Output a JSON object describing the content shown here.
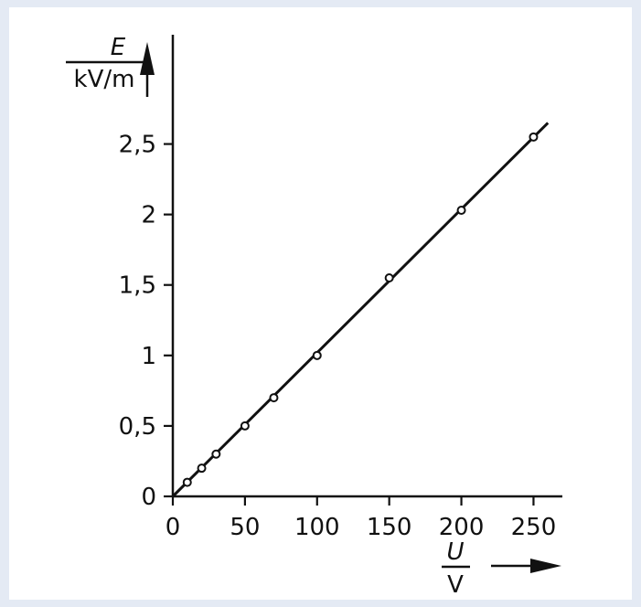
{
  "colors": {
    "background": "#e4eaf4",
    "panel": "#ffffff",
    "ink": "#111111"
  },
  "chart_data": {
    "type": "line",
    "title": "",
    "y_label": {
      "symbol": "E",
      "unit": "kV/m"
    },
    "x_label": {
      "symbol": "U",
      "unit": "V"
    },
    "xlim": [
      0,
      270
    ],
    "ylim": [
      0,
      2.75
    ],
    "grid": false,
    "x_ticks": [
      {
        "value": 0,
        "label": "0"
      },
      {
        "value": 50,
        "label": "50"
      },
      {
        "value": 100,
        "label": "100"
      },
      {
        "value": 150,
        "label": "150"
      },
      {
        "value": 200,
        "label": "200"
      },
      {
        "value": 250,
        "label": "250"
      }
    ],
    "y_ticks": [
      {
        "value": 0,
        "label": "0"
      },
      {
        "value": 0.5,
        "label": "0,5"
      },
      {
        "value": 1,
        "label": "1"
      },
      {
        "value": 1.5,
        "label": "1,5"
      },
      {
        "value": 2,
        "label": "2"
      },
      {
        "value": 2.5,
        "label": "2,5"
      }
    ],
    "series": [
      {
        "markers": "open-circle",
        "points": [
          {
            "x": 10,
            "y": 0.1
          },
          {
            "x": 20,
            "y": 0.2
          },
          {
            "x": 30,
            "y": 0.3
          },
          {
            "x": 50,
            "y": 0.5
          },
          {
            "x": 70,
            "y": 0.7
          },
          {
            "x": 100,
            "y": 1.0
          },
          {
            "x": 150,
            "y": 1.55
          },
          {
            "x": 200,
            "y": 2.03
          },
          {
            "x": 250,
            "y": 2.55
          }
        ]
      }
    ],
    "fit_line": {
      "from": {
        "x": 0,
        "y": 0
      },
      "to": {
        "x": 260,
        "y": 2.65
      }
    }
  }
}
